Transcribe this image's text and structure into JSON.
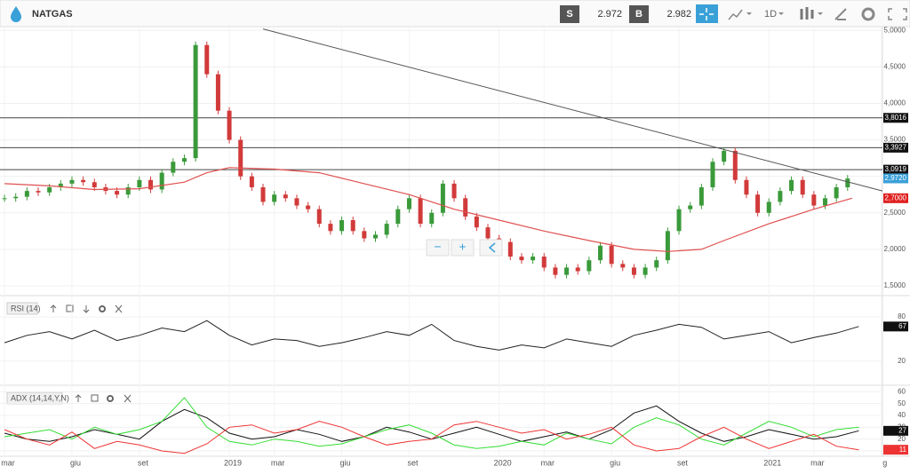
{
  "header": {
    "symbol": "NATGAS",
    "sell_label": "S",
    "sell": "2.972",
    "buy_label": "B",
    "buy": "2.982",
    "interval": "1D",
    "zoom_out": "−",
    "zoom_in": "+"
  },
  "chart_data": [
    {
      "type": "candlestick",
      "x": [
        0,
        0.5,
        1,
        1.5,
        2,
        2.5,
        3,
        3.5,
        4,
        4.5,
        5,
        5.5,
        6,
        6.5,
        7,
        7.5,
        8,
        8.5,
        9,
        9.5,
        10,
        10.5,
        11,
        11.5,
        12,
        12.5,
        13,
        13.5,
        14,
        14.5,
        15,
        15.5,
        16,
        16.5,
        17,
        17.5,
        18,
        18.5,
        19,
        19.5,
        20,
        20.5,
        21,
        21.5,
        22,
        22.5,
        23,
        23.5,
        24,
        24.5,
        25,
        25.5,
        26,
        26.5,
        27,
        27.5,
        28,
        28.5,
        29,
        29.5,
        30,
        30.5,
        31,
        31.5,
        32,
        32.5,
        33,
        33.5,
        34,
        34.5,
        35,
        35.5,
        36,
        36.5,
        37,
        37.5
      ],
      "values": [
        2.7,
        2.72,
        2.8,
        2.78,
        2.85,
        2.9,
        2.95,
        2.92,
        2.85,
        2.8,
        2.75,
        2.85,
        2.95,
        2.82,
        3.05,
        3.2,
        3.25,
        4.8,
        4.4,
        3.9,
        3.5,
        3.0,
        2.85,
        2.65,
        2.75,
        2.7,
        2.6,
        2.55,
        2.35,
        2.25,
        2.4,
        2.25,
        2.15,
        2.2,
        2.35,
        2.55,
        2.7,
        2.35,
        2.5,
        2.9,
        2.7,
        2.45,
        2.3,
        2.15,
        2.1,
        1.9,
        1.85,
        1.9,
        1.75,
        1.65,
        1.75,
        1.7,
        1.85,
        2.05,
        1.8,
        1.75,
        1.65,
        1.75,
        1.85,
        2.25,
        2.55,
        2.6,
        2.85,
        3.2,
        3.35,
        2.95,
        2.75,
        2.5,
        2.65,
        2.8,
        2.95,
        2.75,
        2.6,
        2.7,
        2.85,
        2.97
      ],
      "up_color": "#3a9a3a",
      "down_color": "#d23a3a",
      "ma_x": [
        0,
        2,
        4,
        6,
        8,
        9,
        10,
        12,
        14,
        16,
        18,
        20,
        22,
        24,
        26,
        28,
        29.5,
        31,
        32,
        34,
        36,
        37.7
      ],
      "ma_values": [
        2.9,
        2.87,
        2.82,
        2.83,
        2.92,
        3.05,
        3.12,
        3.1,
        3.05,
        2.9,
        2.75,
        2.55,
        2.4,
        2.25,
        2.12,
        2.0,
        1.97,
        2.0,
        2.12,
        2.35,
        2.55,
        2.7
      ],
      "ma_color": "#e05050",
      "trendline": {
        "x": [
          11.5,
          39.05
        ],
        "y": [
          5.02,
          2.8
        ]
      },
      "levels": [
        {
          "value": 3.8016,
          "label": "3,8016"
        },
        {
          "value": 3.3927,
          "label": "3,3927"
        },
        {
          "value": 3.0919,
          "label": "3,0919"
        }
      ],
      "current": {
        "value": 2.972,
        "label": "2,9720"
      },
      "ma_label": {
        "value": 2.7,
        "label": "2,7000"
      },
      "xlim": [
        -0.2,
        39.05
      ],
      "ylim": [
        1.39,
        5.04
      ],
      "yticks": [
        {
          "value": 5,
          "label": "5,0000"
        },
        {
          "value": 4.5,
          "label": "4,5000"
        },
        {
          "value": 4,
          "label": "4,0000"
        },
        {
          "value": 3.5,
          "label": "3,5000"
        },
        {
          "value": 3,
          "label": "3,0000"
        },
        {
          "value": 2.5,
          "label": "2,5000"
        },
        {
          "value": 2,
          "label": "2,0000"
        },
        {
          "value": 1.5,
          "label": "1,5000"
        }
      ],
      "xticks": [
        {
          "value": 0,
          "label": "mar"
        },
        {
          "value": 3,
          "label": "giu"
        },
        {
          "value": 6,
          "label": "set"
        },
        {
          "value": 10,
          "label": "2019"
        },
        {
          "value": 12,
          "label": "mar"
        },
        {
          "value": 15,
          "label": "giu"
        },
        {
          "value": 18,
          "label": "set"
        },
        {
          "value": 22,
          "label": "2020"
        },
        {
          "value": 24,
          "label": "mar"
        },
        {
          "value": 27,
          "label": "giu"
        },
        {
          "value": 30,
          "label": "set"
        },
        {
          "value": 34,
          "label": "2021"
        },
        {
          "value": 36,
          "label": "mar"
        },
        {
          "value": 39,
          "label": "g"
        }
      ]
    },
    {
      "type": "line",
      "title": "RSI (14)",
      "x": [
        0,
        1,
        2,
        3,
        4,
        5,
        6,
        7,
        8,
        9,
        10,
        11,
        12,
        13,
        14,
        15,
        16,
        17,
        18,
        19,
        20,
        21,
        22,
        23,
        24,
        25,
        26,
        27,
        28,
        29,
        30,
        31,
        32,
        33,
        34,
        35,
        36,
        37,
        38
      ],
      "values": [
        45,
        55,
        60,
        50,
        62,
        48,
        55,
        65,
        60,
        75,
        55,
        42,
        50,
        48,
        40,
        45,
        52,
        60,
        55,
        70,
        48,
        40,
        35,
        42,
        38,
        50,
        45,
        40,
        55,
        62,
        70,
        66,
        50,
        55,
        60,
        45,
        52,
        58,
        67
      ],
      "color": "#222222",
      "last_label": {
        "value": 67,
        "label": "67"
      },
      "xlim": [
        -0.2,
        39.05
      ],
      "ylim": [
        -8,
        103
      ],
      "yticks": [
        80,
        20
      ]
    },
    {
      "type": "line",
      "title": "ADX (14,14,Y,N)",
      "x": [
        0,
        1,
        2,
        3,
        4,
        5,
        6,
        7,
        8,
        9,
        10,
        11,
        12,
        13,
        14,
        15,
        16,
        17,
        18,
        19,
        20,
        21,
        22,
        23,
        24,
        25,
        26,
        27,
        28,
        29,
        30,
        31,
        32,
        33,
        34,
        35,
        36,
        37,
        38
      ],
      "series": [
        {
          "color": "#111111",
          "values": [
            25,
            20,
            18,
            22,
            28,
            24,
            20,
            35,
            45,
            38,
            25,
            20,
            22,
            28,
            24,
            18,
            22,
            30,
            26,
            20,
            25,
            30,
            24,
            18,
            22,
            26,
            20,
            28,
            42,
            48,
            35,
            25,
            18,
            22,
            28,
            24,
            20,
            22,
            27
          ]
        },
        {
          "color": "#33dd33",
          "values": [
            22,
            25,
            28,
            20,
            30,
            24,
            28,
            35,
            55,
            30,
            18,
            15,
            20,
            18,
            14,
            16,
            22,
            28,
            32,
            25,
            15,
            12,
            14,
            18,
            15,
            25,
            20,
            16,
            30,
            38,
            32,
            20,
            15,
            25,
            35,
            30,
            22,
            28,
            30
          ]
        },
        {
          "color": "#ee3333",
          "values": [
            28,
            20,
            15,
            26,
            12,
            18,
            15,
            10,
            8,
            16,
            30,
            32,
            25,
            28,
            35,
            30,
            22,
            15,
            18,
            20,
            32,
            35,
            30,
            25,
            28,
            20,
            24,
            30,
            15,
            10,
            12,
            22,
            30,
            20,
            12,
            18,
            24,
            14,
            11
          ]
        }
      ],
      "last_labels": [
        {
          "value": 27,
          "label": "27"
        },
        {
          "value": 11,
          "label": "11"
        }
      ],
      "xlim": [
        -0.2,
        39.05
      ],
      "ylim": [
        4,
        64
      ],
      "yticks": [
        60,
        50,
        40,
        30,
        20,
        10
      ]
    }
  ]
}
